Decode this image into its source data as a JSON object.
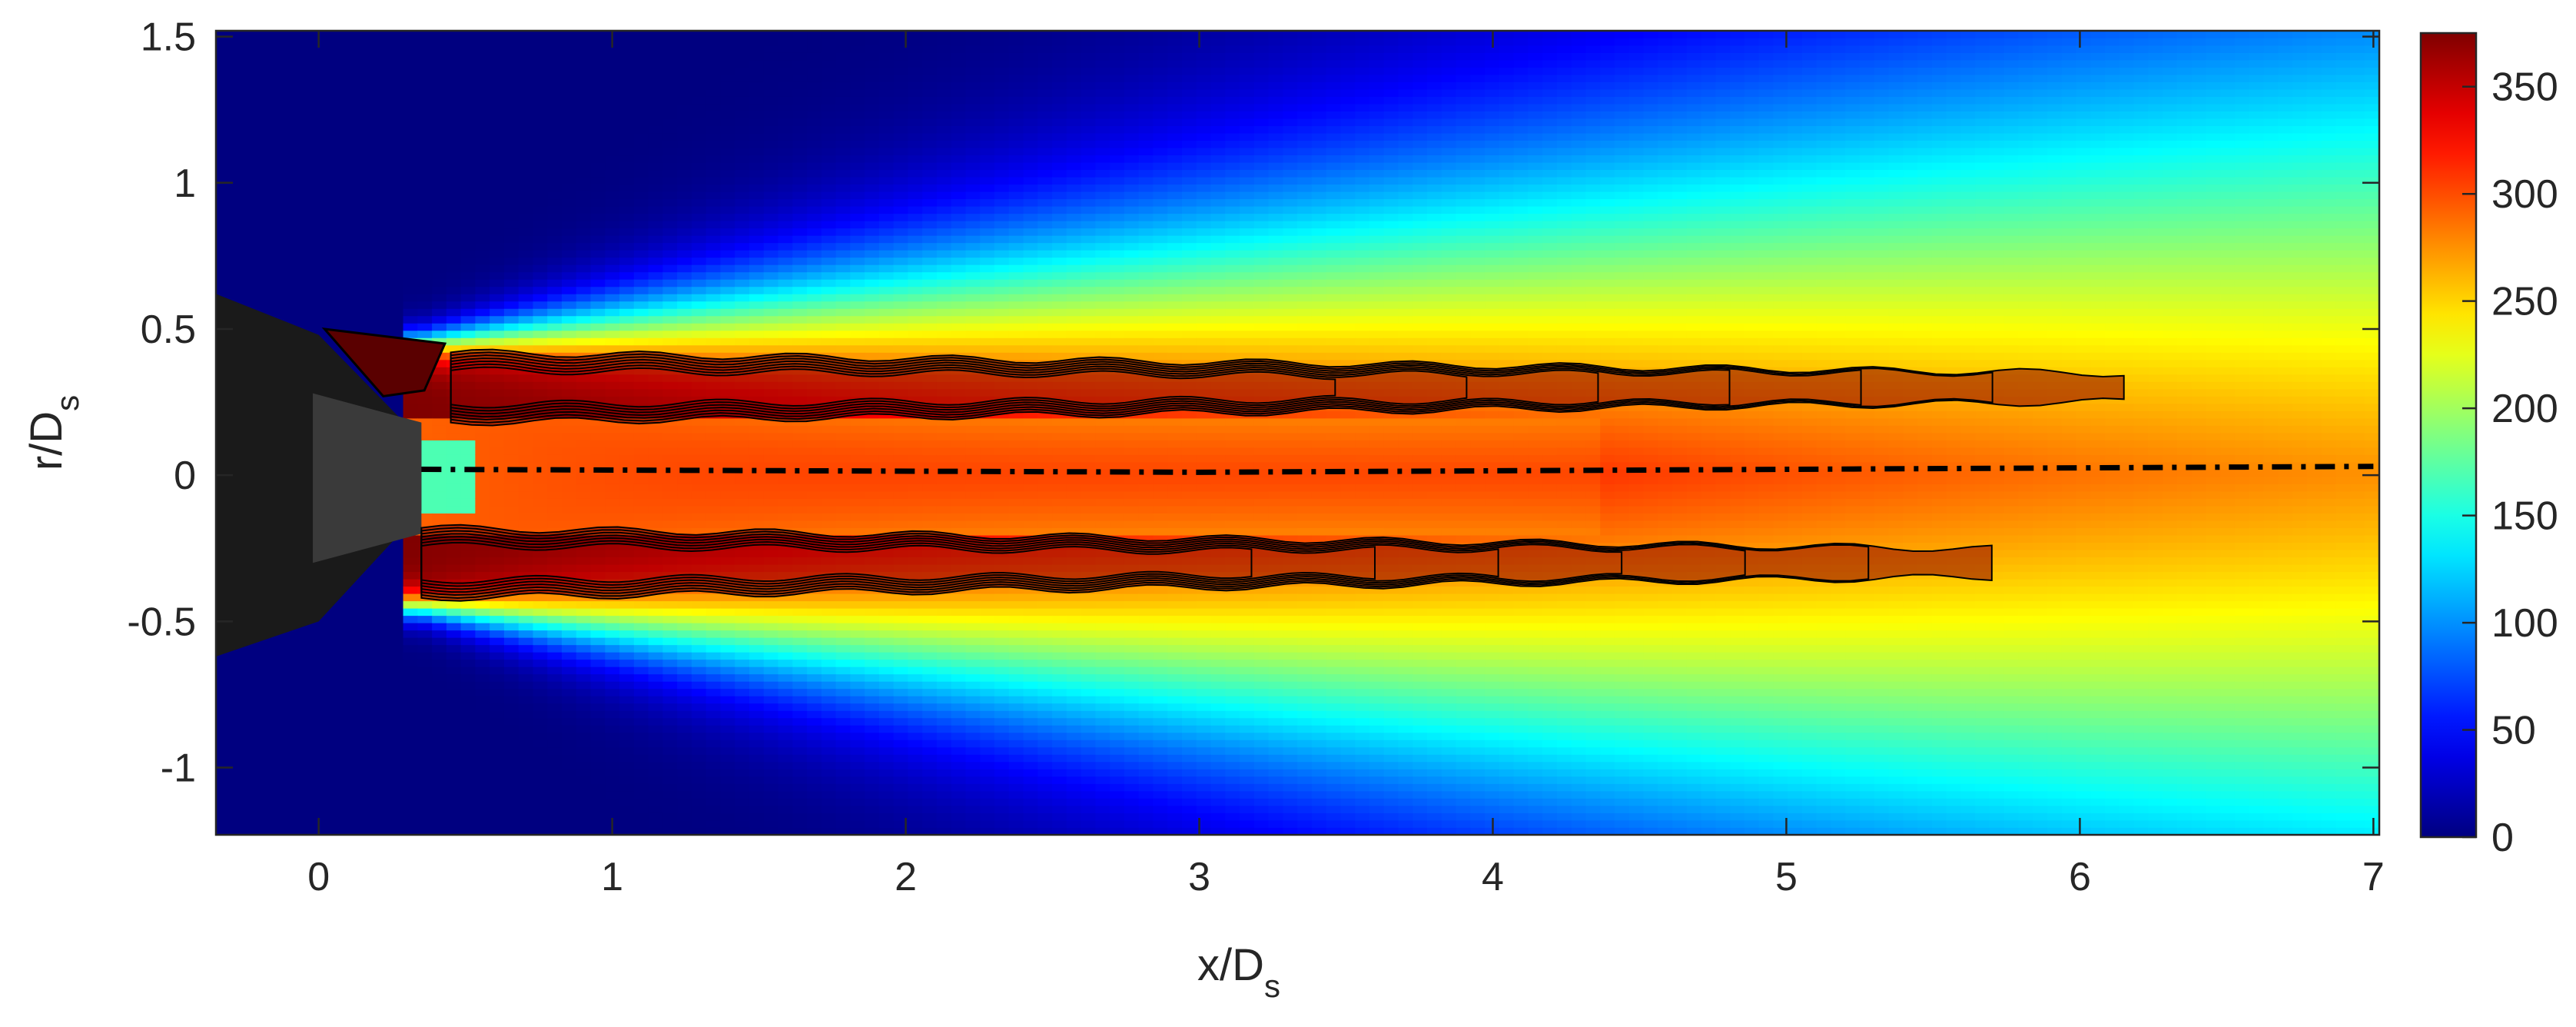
{
  "chart_data": {
    "type": "heatmap",
    "title": "",
    "xlabel": {
      "main": "x/D",
      "sub": "s"
    },
    "ylabel": {
      "main": "r/D",
      "sub": "s"
    },
    "xlim": [
      -0.35,
      7.02
    ],
    "ylim": [
      -1.23,
      1.52
    ],
    "x_ticks": [
      0,
      1,
      2,
      3,
      4,
      5,
      6,
      7
    ],
    "x_tick_labels": [
      "0",
      "1",
      "2",
      "3",
      "4",
      "5",
      "6",
      "7"
    ],
    "y_ticks": [
      -1,
      -0.5,
      0,
      0.5,
      1,
      1.5
    ],
    "y_tick_labels": [
      "-1",
      "-0.5",
      "0",
      "0.5",
      "1",
      "1.5"
    ],
    "colorbar": {
      "colormap": "jet",
      "clim": [
        0,
        375
      ],
      "ticks": [
        0,
        50,
        100,
        150,
        200,
        250,
        300,
        350
      ],
      "tick_labels": [
        "0",
        "50",
        "100",
        "150",
        "200",
        "250",
        "300",
        "350"
      ],
      "colors": [
        "#00007f",
        "#0000ff",
        "#007fff",
        "#00ffff",
        "#7fff7f",
        "#ffff00",
        "#ff7f00",
        "#ff0000",
        "#7f0000"
      ]
    },
    "field": {
      "jet_center_r": 0.0,
      "nozzle_exit_x": 0.35,
      "jet_edge_r_at_exit": 0.45,
      "spread_rate": 0.085,
      "max_value": 375
    },
    "contours": {
      "upper_shear_layer": {
        "x_start": 0.45,
        "x_end": 6.15,
        "r_center": 0.3
      },
      "lower_shear_layer": {
        "x_start": 0.35,
        "x_end": 5.7,
        "r_center": -0.3
      },
      "line_color": "#000000"
    },
    "centerline": {
      "style": "dash-dot",
      "x": [
        0.35,
        3.0,
        7.0
      ],
      "r": [
        0.02,
        0.01,
        0.03
      ]
    },
    "nozzle": {
      "description_free": true,
      "x_left": -0.35,
      "x_exit": 0.35
    }
  }
}
